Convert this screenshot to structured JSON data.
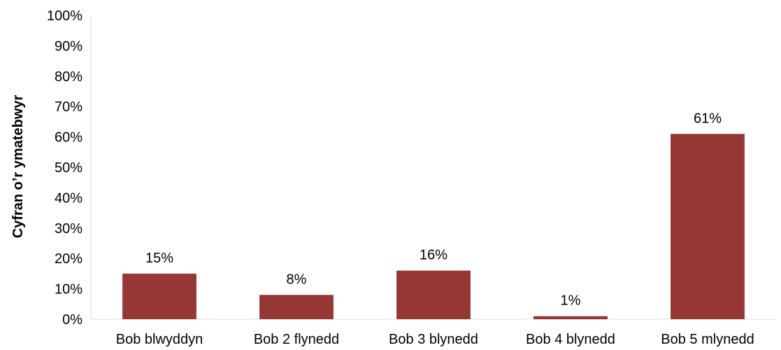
{
  "chart_data": {
    "type": "bar",
    "title": "",
    "xlabel": "",
    "ylabel": "Cyfran o’r ymatebwyr",
    "categories": [
      "Bob blwyddyn",
      "Bob 2 flynedd",
      "Bob 3 blynedd",
      "Bob 4 blynedd",
      "Bob 5 mlynedd"
    ],
    "values": [
      15,
      8,
      16,
      1,
      61
    ],
    "data_labels": [
      "15%",
      "8%",
      "16%",
      "1%",
      "61%"
    ],
    "ylim": [
      0,
      100
    ],
    "yticks": [
      0,
      10,
      20,
      30,
      40,
      50,
      60,
      70,
      80,
      90,
      100
    ],
    "ytick_labels": [
      "0%",
      "10%",
      "20%",
      "30%",
      "40%",
      "50%",
      "60%",
      "70%",
      "80%",
      "90%",
      "100%"
    ],
    "grid": false,
    "legend": "none",
    "bar_color": "#953735",
    "axis_color": "#d9d9d9"
  }
}
